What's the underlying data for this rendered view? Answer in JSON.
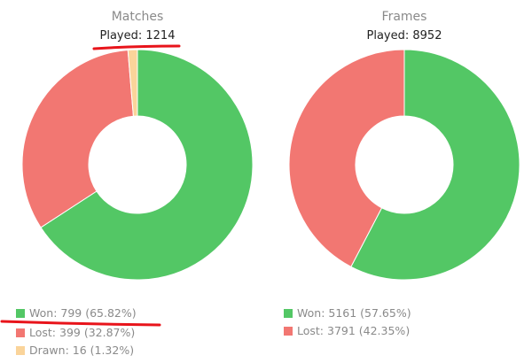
{
  "chart_data": [
    {
      "type": "pie",
      "title": "Matches",
      "subtitle": "Played: 1214",
      "slices": [
        {
          "label": "Won",
          "value": 799,
          "percent": 65.82,
          "color": "#53c765"
        },
        {
          "label": "Lost",
          "value": 399,
          "percent": 32.87,
          "color": "#f27772"
        },
        {
          "label": "Drawn",
          "value": 16,
          "percent": 1.32,
          "color": "#fad49a"
        }
      ],
      "legend": [
        {
          "text": "Won: 799 (65.82%)",
          "color": "#53c765"
        },
        {
          "text": "Lost: 399 (32.87%)",
          "color": "#f27772"
        },
        {
          "text": "Drawn: 16 (1.32%)",
          "color": "#fad49a"
        }
      ],
      "legend_position": "bottom-left"
    },
    {
      "type": "pie",
      "title": "Frames",
      "subtitle": "Played: 8952",
      "slices": [
        {
          "label": "Won",
          "value": 5161,
          "percent": 57.65,
          "color": "#53c765"
        },
        {
          "label": "Lost",
          "value": 3791,
          "percent": 42.35,
          "color": "#f27772"
        }
      ],
      "legend": [
        {
          "text": "Won: 5161 (57.65%)",
          "color": "#53c765"
        },
        {
          "text": "Lost: 3791 (42.35%)",
          "color": "#f27772"
        }
      ],
      "legend_position": "bottom-left"
    }
  ],
  "annotations": {
    "underline_color": "#e8141b"
  }
}
